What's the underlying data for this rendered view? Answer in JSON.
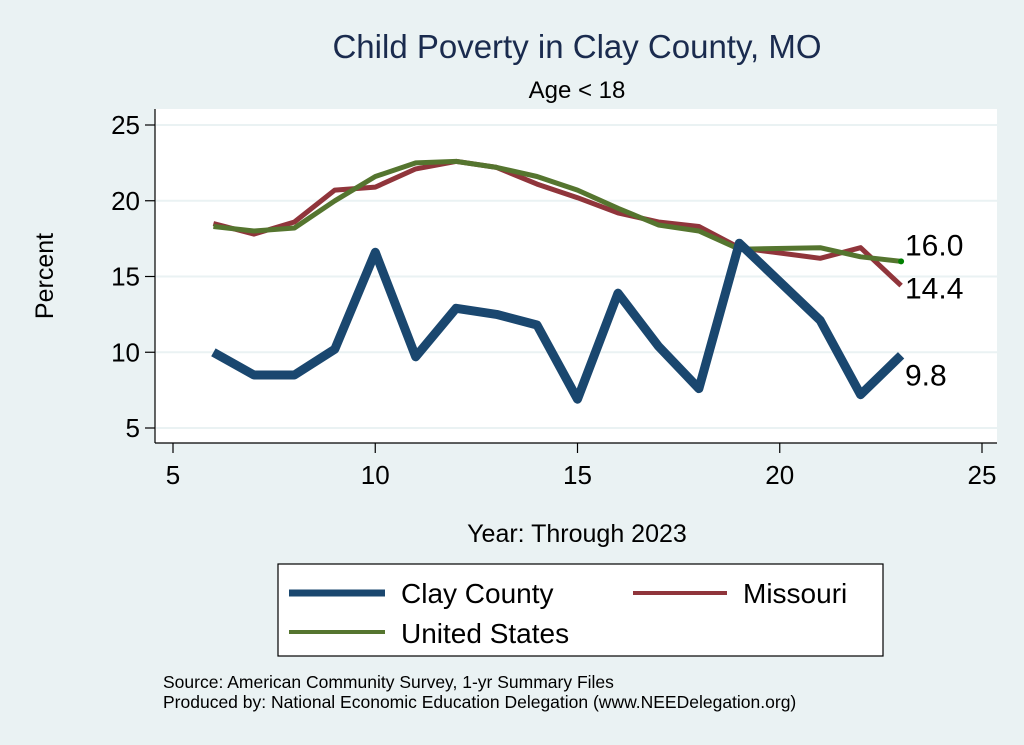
{
  "chart_data": {
    "type": "line",
    "title": "Child Poverty in Clay County, MO",
    "subtitle": "Age < 18",
    "xlabel": "Year: Through 2023",
    "ylabel": "Percent",
    "xlim": [
      5,
      25
    ],
    "ylim": [
      5,
      25
    ],
    "xticks": [
      5,
      10,
      15,
      20,
      25
    ],
    "yticks": [
      5,
      10,
      15,
      20,
      25
    ],
    "grid": true,
    "legend_position": "bottom",
    "series": [
      {
        "name": "Clay County",
        "color": "#1a476f",
        "x": [
          6,
          7,
          8,
          9,
          10,
          11,
          12,
          13,
          14,
          15,
          16,
          17,
          18,
          19,
          21,
          22,
          23
        ],
        "values": [
          10.0,
          8.5,
          8.5,
          10.2,
          16.6,
          9.7,
          12.9,
          12.5,
          11.8,
          6.9,
          13.9,
          10.4,
          7.6,
          17.2,
          12.1,
          7.2,
          9.8
        ],
        "end_label": "9.8"
      },
      {
        "name": "Missouri",
        "color": "#90353b",
        "x": [
          6,
          7,
          8,
          9,
          10,
          11,
          12,
          13,
          14,
          15,
          16,
          17,
          18,
          19,
          21,
          22,
          23
        ],
        "values": [
          18.5,
          17.8,
          18.6,
          20.7,
          20.9,
          22.1,
          22.6,
          22.2,
          21.1,
          20.2,
          19.2,
          18.6,
          18.3,
          16.9,
          16.2,
          16.9,
          14.4
        ],
        "end_label": "14.4"
      },
      {
        "name": "United States",
        "color": "#55752f",
        "x": [
          6,
          7,
          8,
          9,
          10,
          11,
          12,
          13,
          14,
          15,
          16,
          17,
          18,
          19,
          21,
          22,
          23
        ],
        "values": [
          18.3,
          18.0,
          18.2,
          20.0,
          21.6,
          22.5,
          22.6,
          22.2,
          21.6,
          20.7,
          19.5,
          18.4,
          18.0,
          16.8,
          16.9,
          16.3,
          16.0
        ],
        "end_label": "16.0",
        "end_marker_color": "#008000"
      }
    ],
    "notes": [
      "Source: American Community Survey, 1-yr Summary Files",
      "Produced by: National Economic Education Delegation (www.NEEDelegation.org)"
    ]
  }
}
